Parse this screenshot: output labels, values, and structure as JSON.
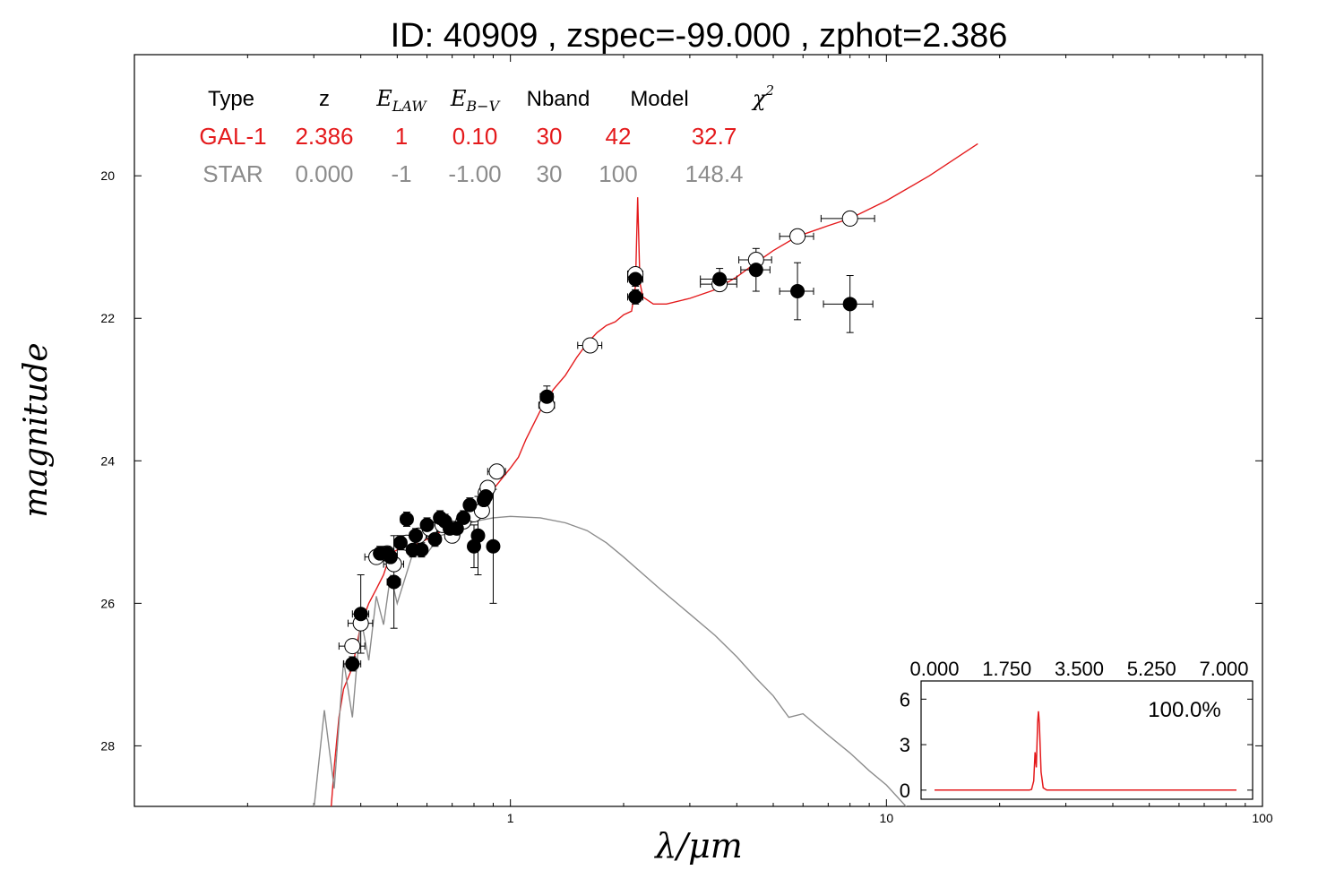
{
  "colors": {
    "galaxy": "#e41a1c",
    "star": "#8c8c8c",
    "axis": "#000000",
    "observed_fill": "#000000",
    "model_fill": "#ffffff"
  },
  "chart_data": [
    {
      "type": "scatter",
      "title": "ID:  40909 , zspec=-99.000 , zphot=2.386",
      "xlabel": "λ/μm",
      "ylabel": "magnitude",
      "xscale": "log",
      "xlim": [
        0.1,
        100
      ],
      "ylim": [
        28.85,
        18.3
      ],
      "y_inverted": true,
      "grid": false,
      "x_ticks": [
        {
          "value": 1,
          "label": "1"
        },
        {
          "value": 10,
          "label": "10"
        },
        {
          "value": 100,
          "label": "100"
        }
      ],
      "y_ticks": [
        {
          "value": 20,
          "label": "20"
        },
        {
          "value": 22,
          "label": "22"
        },
        {
          "value": 24,
          "label": "24"
        },
        {
          "value": 26,
          "label": "26"
        },
        {
          "value": 28,
          "label": "28"
        }
      ],
      "fit_table": {
        "headers": [
          {
            "text": "Type",
            "math": false
          },
          {
            "text": "z",
            "math": false
          },
          {
            "text": "E",
            "sub": "LAW",
            "math": true
          },
          {
            "text": "E",
            "sub": "B−V",
            "math": true
          },
          {
            "text": "Nband",
            "math": false
          },
          {
            "text": "Model",
            "math": false
          },
          {
            "text": "χ",
            "sup": "2",
            "math": true
          }
        ],
        "rows": [
          {
            "kind": "galaxy",
            "cells": [
              "GAL-1",
              "2.386",
              "1",
              "0.10",
              "30",
              "42",
              "32.7"
            ]
          },
          {
            "kind": "star",
            "cells": [
              "STAR",
              "0.000",
              "-1",
              "-1.00",
              "30",
              "100",
              "148.4"
            ]
          }
        ]
      },
      "series": [
        {
          "kind": "galaxy_template",
          "color": "#e41a1c",
          "points": [
            [
              0.33,
              29.2
            ],
            [
              0.34,
              28.3
            ],
            [
              0.35,
              27.6
            ],
            [
              0.36,
              27.2
            ],
            [
              0.38,
              26.9
            ],
            [
              0.4,
              26.3
            ],
            [
              0.42,
              26.0
            ],
            [
              0.44,
              25.8
            ],
            [
              0.46,
              25.6
            ],
            [
              0.48,
              25.3
            ],
            [
              0.5,
              25.25
            ],
            [
              0.52,
              25.1
            ],
            [
              0.55,
              25.2
            ],
            [
              0.6,
              25.1
            ],
            [
              0.65,
              25.0
            ],
            [
              0.7,
              24.95
            ],
            [
              0.75,
              24.85
            ],
            [
              0.8,
              24.75
            ],
            [
              0.85,
              24.6
            ],
            [
              0.9,
              24.4
            ],
            [
              1.0,
              24.1
            ],
            [
              1.05,
              23.95
            ],
            [
              1.1,
              23.7
            ],
            [
              1.2,
              23.3
            ],
            [
              1.3,
              23.0
            ],
            [
              1.4,
              22.8
            ],
            [
              1.5,
              22.55
            ],
            [
              1.6,
              22.35
            ],
            [
              1.7,
              22.2
            ],
            [
              1.8,
              22.1
            ],
            [
              1.9,
              22.05
            ],
            [
              2.0,
              21.95
            ],
            [
              2.1,
              21.9
            ],
            [
              2.15,
              21.55
            ],
            [
              2.18,
              20.3
            ],
            [
              2.21,
              21.5
            ],
            [
              2.25,
              21.7
            ],
            [
              2.4,
              21.8
            ],
            [
              2.6,
              21.8
            ],
            [
              3.0,
              21.72
            ],
            [
              3.5,
              21.6
            ],
            [
              4.0,
              21.42
            ],
            [
              4.5,
              21.22
            ],
            [
              5.0,
              21.05
            ],
            [
              5.8,
              20.85
            ],
            [
              7.0,
              20.7
            ],
            [
              8.0,
              20.6
            ],
            [
              10.0,
              20.35
            ],
            [
              13.0,
              20.0
            ],
            [
              17.5,
              19.55
            ]
          ]
        },
        {
          "kind": "star_template",
          "color": "#8c8c8c",
          "points": [
            [
              0.3,
              28.9
            ],
            [
              0.32,
              27.5
            ],
            [
              0.34,
              28.6
            ],
            [
              0.36,
              26.8
            ],
            [
              0.38,
              27.6
            ],
            [
              0.4,
              26.2
            ],
            [
              0.42,
              26.8
            ],
            [
              0.44,
              25.9
            ],
            [
              0.46,
              26.3
            ],
            [
              0.48,
              25.6
            ],
            [
              0.5,
              26.0
            ],
            [
              0.55,
              25.3
            ],
            [
              0.6,
              25.3
            ],
            [
              0.65,
              25.05
            ],
            [
              0.7,
              25.0
            ],
            [
              0.8,
              24.85
            ],
            [
              0.9,
              24.8
            ],
            [
              1.0,
              24.78
            ],
            [
              1.2,
              24.8
            ],
            [
              1.4,
              24.87
            ],
            [
              1.6,
              24.98
            ],
            [
              1.8,
              25.15
            ],
            [
              2.0,
              25.35
            ],
            [
              2.5,
              25.8
            ],
            [
              3.0,
              26.15
            ],
            [
              3.5,
              26.45
            ],
            [
              4.0,
              26.75
            ],
            [
              4.5,
              27.05
            ],
            [
              5.0,
              27.3
            ],
            [
              5.5,
              27.6
            ],
            [
              6.0,
              27.55
            ],
            [
              7.0,
              27.85
            ],
            [
              8.0,
              28.1
            ],
            [
              9.0,
              28.35
            ],
            [
              10.0,
              28.55
            ],
            [
              11.5,
              28.9
            ]
          ]
        },
        {
          "kind": "observed",
          "name": "",
          "points": [
            {
              "x": 0.38,
              "y": 26.85,
              "yerr": 0.1,
              "xerr": 0.02
            },
            {
              "x": 0.4,
              "y": 26.15,
              "yerr": 0.55,
              "xerr": 0.02
            },
            {
              "x": 0.45,
              "y": 25.3,
              "yerr": 0.1,
              "xerr": 0.02
            },
            {
              "x": 0.47,
              "y": 25.3,
              "yerr": 0.1,
              "xerr": 0.02
            },
            {
              "x": 0.48,
              "y": 25.35,
              "yerr": 0.1,
              "xerr": 0.02
            },
            {
              "x": 0.49,
              "y": 25.7,
              "yerr": 0.65,
              "xerr": 0.02
            },
            {
              "x": 0.51,
              "y": 25.15,
              "yerr": 0.1,
              "xerr": 0.02
            },
            {
              "x": 0.53,
              "y": 24.82,
              "yerr": 0.1,
              "xerr": 0.02
            },
            {
              "x": 0.55,
              "y": 25.25,
              "yerr": 0.1,
              "xerr": 0.02
            },
            {
              "x": 0.56,
              "y": 25.05,
              "yerr": 0.1,
              "xerr": 0.02
            },
            {
              "x": 0.58,
              "y": 25.25,
              "yerr": 0.1,
              "xerr": 0.02
            },
            {
              "x": 0.6,
              "y": 24.9,
              "yerr": 0.1,
              "xerr": 0.02
            },
            {
              "x": 0.63,
              "y": 25.1,
              "yerr": 0.1,
              "xerr": 0.02
            },
            {
              "x": 0.65,
              "y": 24.8,
              "yerr": 0.1,
              "xerr": 0.02
            },
            {
              "x": 0.67,
              "y": 24.85,
              "yerr": 0.1,
              "xerr": 0.02
            },
            {
              "x": 0.69,
              "y": 24.95,
              "yerr": 0.1,
              "xerr": 0.02
            },
            {
              "x": 0.72,
              "y": 24.95,
              "yerr": 0.1,
              "xerr": 0.02
            },
            {
              "x": 0.75,
              "y": 24.8,
              "yerr": 0.1,
              "xerr": 0.02
            },
            {
              "x": 0.78,
              "y": 24.62,
              "yerr": 0.1,
              "xerr": 0.02
            },
            {
              "x": 0.8,
              "y": 25.2,
              "yerr": 0.3,
              "xerr": 0.02
            },
            {
              "x": 0.82,
              "y": 25.05,
              "yerr": 0.55,
              "xerr": 0.02
            },
            {
              "x": 0.85,
              "y": 24.55,
              "yerr": 0.1,
              "xerr": 0.02
            },
            {
              "x": 0.86,
              "y": 24.5,
              "yerr": 0.1,
              "xerr": 0.02
            },
            {
              "x": 0.9,
              "y": 25.2,
              "yerr": 0.8,
              "xerr": 0.02
            },
            {
              "x": 1.25,
              "y": 23.1,
              "yerr": 0.15,
              "xerr": 0.05
            },
            {
              "x": 2.15,
              "y": 21.45,
              "yerr": 0.1,
              "xerr": 0.1
            },
            {
              "x": 2.15,
              "y": 21.7,
              "yerr": 0.1,
              "xerr": 0.1
            },
            {
              "x": 3.6,
              "y": 21.45,
              "yerr": 0.15,
              "xerr": 0.4
            },
            {
              "x": 4.5,
              "y": 21.32,
              "yerr": 0.3,
              "xerr": 0.4
            },
            {
              "x": 5.8,
              "y": 21.62,
              "yerr": 0.4,
              "xerr": 0.6
            },
            {
              "x": 8.0,
              "y": 21.8,
              "yerr": 0.4,
              "xerr": 1.2
            }
          ]
        },
        {
          "kind": "model_magnitudes",
          "name": "",
          "points": [
            {
              "x": 0.38,
              "y": 26.6,
              "xerr": 0.03
            },
            {
              "x": 0.4,
              "y": 26.28,
              "xerr": 0.03
            },
            {
              "x": 0.44,
              "y": 25.35,
              "xerr": 0.03
            },
            {
              "x": 0.47,
              "y": 25.3,
              "xerr": 0.03
            },
            {
              "x": 0.49,
              "y": 25.45,
              "xerr": 0.03
            },
            {
              "x": 0.53,
              "y": 25.15,
              "xerr": 0.03
            },
            {
              "x": 0.57,
              "y": 25.05,
              "xerr": 0.03
            },
            {
              "x": 0.61,
              "y": 24.95,
              "xerr": 0.03
            },
            {
              "x": 0.66,
              "y": 24.9,
              "xerr": 0.03
            },
            {
              "x": 0.7,
              "y": 25.05,
              "xerr": 0.03
            },
            {
              "x": 0.75,
              "y": 24.85,
              "xerr": 0.03
            },
            {
              "x": 0.8,
              "y": 24.75,
              "xerr": 0.03
            },
            {
              "x": 0.84,
              "y": 24.7,
              "xerr": 0.03
            },
            {
              "x": 0.86,
              "y": 24.45,
              "xerr": 0.03
            },
            {
              "x": 0.87,
              "y": 24.38,
              "xerr": 0.03
            },
            {
              "x": 0.92,
              "y": 24.15,
              "xerr": 0.05
            },
            {
              "x": 1.25,
              "y": 23.22,
              "xerr": 0.06
            },
            {
              "x": 1.63,
              "y": 22.38,
              "xerr": 0.12
            },
            {
              "x": 2.15,
              "y": 21.38,
              "xerr": 0.1
            },
            {
              "x": 3.6,
              "y": 21.52,
              "xerr": 0.4
            },
            {
              "x": 4.5,
              "y": 21.18,
              "xerr": 0.45
            },
            {
              "x": 5.8,
              "y": 20.85,
              "xerr": 0.6
            },
            {
              "x": 8.0,
              "y": 20.6,
              "xerr": 1.3
            }
          ]
        }
      ]
    },
    {
      "type": "line",
      "inset": true,
      "xlim": [
        0,
        7
      ],
      "ylim": [
        -0.6,
        7.2
      ],
      "x_ticks": [
        {
          "value": 0,
          "label": "0.000"
        },
        {
          "value": 1.75,
          "label": "1.750"
        },
        {
          "value": 3.5,
          "label": "3.500"
        },
        {
          "value": 5.25,
          "label": "5.250"
        },
        {
          "value": 7,
          "label": "7.000"
        }
      ],
      "y_ticks": [
        {
          "value": 0,
          "label": "0"
        },
        {
          "value": 3,
          "label": "3"
        },
        {
          "value": 6,
          "label": "6"
        }
      ],
      "annotation": "100.0%",
      "series": [
        {
          "color": "#e41a1c",
          "points": [
            [
              0,
              0
            ],
            [
              2.2,
              0
            ],
            [
              2.25,
              0.05
            ],
            [
              2.3,
              0.6
            ],
            [
              2.33,
              2.5
            ],
            [
              2.36,
              1.5
            ],
            [
              2.39,
              4.5
            ],
            [
              2.41,
              5.2
            ],
            [
              2.43,
              4.4
            ],
            [
              2.47,
              1.2
            ],
            [
              2.52,
              0.15
            ],
            [
              2.6,
              0
            ],
            [
              7,
              0
            ]
          ]
        }
      ]
    }
  ]
}
